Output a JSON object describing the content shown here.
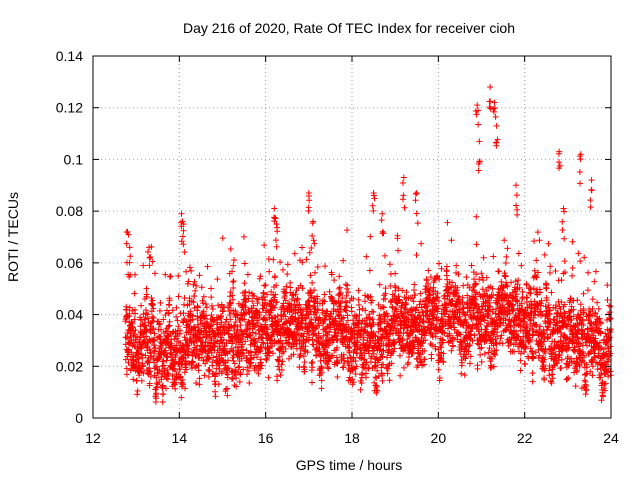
{
  "chart_data": {
    "type": "scatter",
    "title": "Day 216 of 2020, Rate Of TEC Index for receiver cioh",
    "xlabel": "GPS time / hours",
    "ylabel": "ROTI / TECUs",
    "xlim": [
      12,
      24
    ],
    "ylim": [
      0,
      0.14
    ],
    "x_ticks": [
      12,
      14,
      16,
      18,
      20,
      22,
      24
    ],
    "y_ticks": [
      0,
      0.02,
      0.04,
      0.06,
      0.08,
      0.1,
      0.12,
      0.14
    ],
    "grid": true,
    "marker": "plus",
    "series": [
      {
        "name": "ROTI",
        "color": "#ff0000",
        "x_range": [
          12.75,
          24.0
        ],
        "sample_interval_hours": 0.0028,
        "baseline_profile": [
          {
            "x": 12.8,
            "y": 0.03
          },
          {
            "x": 13.5,
            "y": 0.025
          },
          {
            "x": 14.0,
            "y": 0.027
          },
          {
            "x": 15.0,
            "y": 0.028
          },
          {
            "x": 16.0,
            "y": 0.032
          },
          {
            "x": 17.0,
            "y": 0.033
          },
          {
            "x": 18.0,
            "y": 0.032
          },
          {
            "x": 19.0,
            "y": 0.033
          },
          {
            "x": 20.0,
            "y": 0.036
          },
          {
            "x": 21.0,
            "y": 0.04
          },
          {
            "x": 22.0,
            "y": 0.036
          },
          {
            "x": 23.0,
            "y": 0.032
          },
          {
            "x": 24.0,
            "y": 0.025
          }
        ],
        "peaks": [
          {
            "x": 12.8,
            "y": 0.072
          },
          {
            "x": 12.85,
            "y": 0.066
          },
          {
            "x": 13.3,
            "y": 0.066
          },
          {
            "x": 14.05,
            "y": 0.079
          },
          {
            "x": 14.1,
            "y": 0.075
          },
          {
            "x": 15.25,
            "y": 0.059
          },
          {
            "x": 16.2,
            "y": 0.081
          },
          {
            "x": 16.25,
            "y": 0.075
          },
          {
            "x": 17.0,
            "y": 0.087
          },
          {
            "x": 17.1,
            "y": 0.076
          },
          {
            "x": 18.5,
            "y": 0.087
          },
          {
            "x": 18.7,
            "y": 0.079
          },
          {
            "x": 19.2,
            "y": 0.093
          },
          {
            "x": 19.5,
            "y": 0.087
          },
          {
            "x": 20.9,
            "y": 0.121
          },
          {
            "x": 20.95,
            "y": 0.107
          },
          {
            "x": 21.2,
            "y": 0.128
          },
          {
            "x": 21.3,
            "y": 0.122
          },
          {
            "x": 21.35,
            "y": 0.113
          },
          {
            "x": 21.8,
            "y": 0.09
          },
          {
            "x": 22.8,
            "y": 0.103
          },
          {
            "x": 23.3,
            "y": 0.102
          },
          {
            "x": 23.55,
            "y": 0.092
          },
          {
            "x": 22.9,
            "y": 0.081
          }
        ],
        "min_value": 0.006
      }
    ]
  }
}
